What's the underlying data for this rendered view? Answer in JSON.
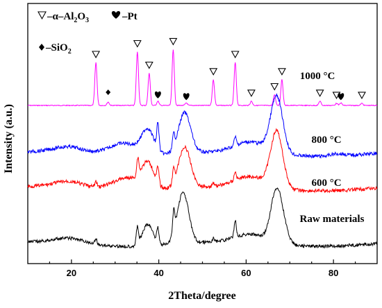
{
  "chart_data": {
    "type": "line",
    "xlabel": "2Theta/degree",
    "ylabel": "Intensity (a.u.)",
    "xlim": [
      10,
      90
    ],
    "xticks": [
      20,
      40,
      60,
      80
    ],
    "yticks": "none",
    "grid": false,
    "legend": {
      "placement": "top-left",
      "entries": [
        {
          "symbol": "triangle-down-open",
          "name": "α–Al2O3"
        },
        {
          "symbol": "heart",
          "name": "Pt"
        },
        {
          "symbol": "diamond",
          "name": "SiO2"
        }
      ]
    },
    "series": [
      {
        "name": "1000 °C",
        "color": "#ff00ff",
        "peaks": [
          [
            25.6,
            1.0
          ],
          [
            28.4,
            0.08
          ],
          [
            35.1,
            1.25
          ],
          [
            37.8,
            0.75
          ],
          [
            39.8,
            0.1
          ],
          [
            43.3,
            1.3
          ],
          [
            46.3,
            0.06
          ],
          [
            52.5,
            0.6
          ],
          [
            57.5,
            1.0
          ],
          [
            61.2,
            0.1
          ],
          [
            66.5,
            0.25
          ],
          [
            68.2,
            0.6
          ],
          [
            76.9,
            0.1
          ],
          [
            80.7,
            0.05
          ],
          [
            81.7,
            0.06
          ],
          [
            86.5,
            0.05
          ]
        ]
      },
      {
        "name": "800 °C",
        "color": "#0000ff",
        "peaks": [
          [
            19.5,
            0.15
          ],
          [
            32.0,
            0.3
          ],
          [
            37.5,
            0.55
          ],
          [
            39.8,
            0.6
          ],
          [
            43.4,
            0.3
          ],
          [
            45.9,
            0.95
          ],
          [
            57.5,
            0.2
          ],
          [
            61.0,
            0.25
          ],
          [
            67.0,
            1.3
          ],
          [
            81.0,
            0.05
          ]
        ]
      },
      {
        "name": "600 °C",
        "color": "#ff0000",
        "peaks": [
          [
            19.5,
            0.15
          ],
          [
            25.6,
            0.12
          ],
          [
            32.8,
            0.3
          ],
          [
            35.2,
            0.4
          ],
          [
            37.5,
            0.55
          ],
          [
            39.8,
            0.35
          ],
          [
            43.4,
            0.3
          ],
          [
            45.9,
            0.95
          ],
          [
            52.5,
            0.08
          ],
          [
            57.5,
            0.2
          ],
          [
            61.0,
            0.25
          ],
          [
            67.0,
            1.3
          ]
        ]
      },
      {
        "name": "Raw materials",
        "color": "#000000",
        "peaks": [
          [
            19.5,
            0.12
          ],
          [
            25.6,
            0.12
          ],
          [
            35.1,
            0.4
          ],
          [
            37.5,
            0.5
          ],
          [
            39.8,
            0.35
          ],
          [
            43.4,
            0.5
          ],
          [
            45.0,
            0.6
          ],
          [
            46.0,
            0.7
          ],
          [
            52.5,
            0.08
          ],
          [
            57.5,
            0.4
          ],
          [
            61.0,
            0.2
          ],
          [
            66.7,
            1.0
          ],
          [
            68.2,
            0.5
          ]
        ]
      }
    ],
    "annotations": {
      "alpha_al2o3_peaks": [
        25.6,
        35.1,
        37.8,
        43.3,
        52.5,
        57.5,
        61.2,
        66.5,
        68.2,
        76.9,
        80.7,
        86.5
      ],
      "pt_peaks": [
        39.8,
        46.3,
        81.7
      ],
      "sio2_peaks": [
        28.4
      ]
    }
  }
}
